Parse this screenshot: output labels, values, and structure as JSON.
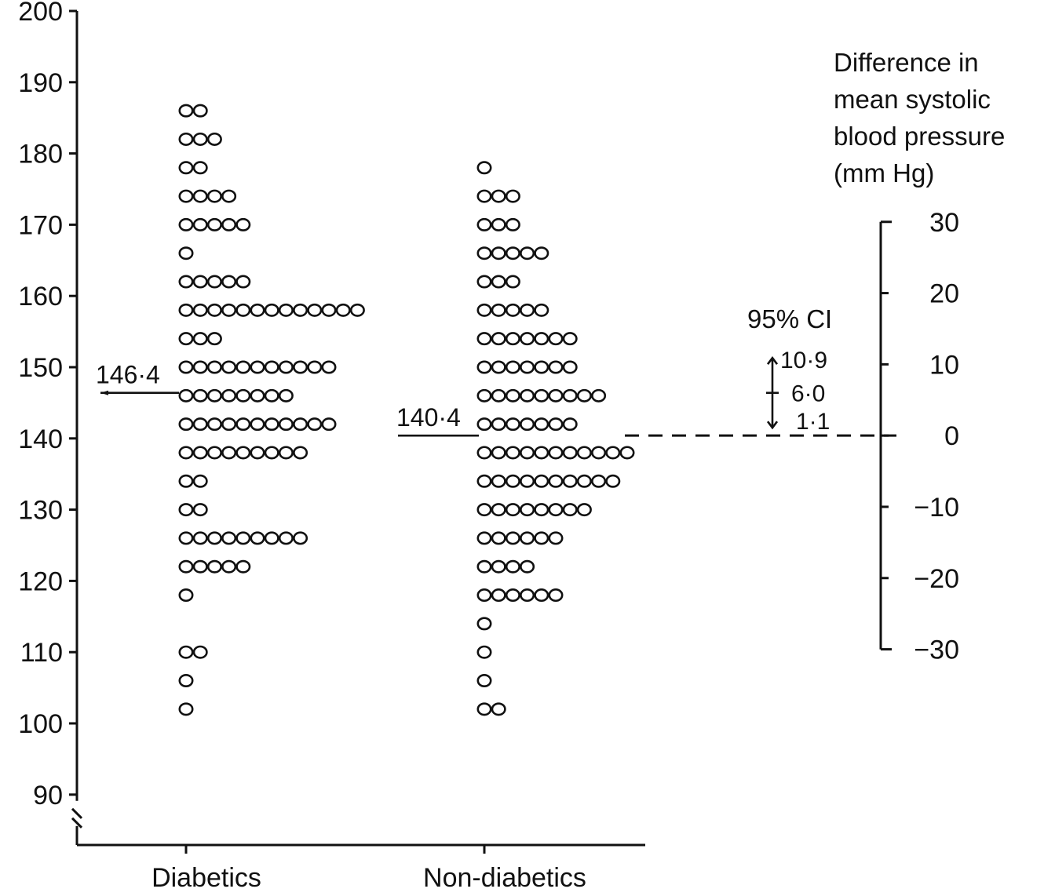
{
  "chart_data": {
    "type": "scatter",
    "subtype": "dot-strip",
    "title": "",
    "xlabel": "",
    "ylabel": "",
    "ylim": [
      90,
      200
    ],
    "y_ticks": [
      90,
      100,
      110,
      120,
      130,
      140,
      150,
      160,
      170,
      180,
      190,
      200
    ],
    "axis_break": true,
    "grid": false,
    "categories": [
      "Diabetics",
      "Non-diabetics"
    ],
    "series": [
      {
        "category": "Diabetics",
        "mean": 146.4,
        "mean_label": "146·4",
        "rows": [
          {
            "y": 186,
            "count": 2
          },
          {
            "y": 182,
            "count": 3
          },
          {
            "y": 178,
            "count": 2
          },
          {
            "y": 174,
            "count": 4
          },
          {
            "y": 170,
            "count": 5
          },
          {
            "y": 166,
            "count": 1
          },
          {
            "y": 162,
            "count": 5
          },
          {
            "y": 158,
            "count": 13
          },
          {
            "y": 154,
            "count": 3
          },
          {
            "y": 150,
            "count": 11
          },
          {
            "y": 146,
            "count": 8
          },
          {
            "y": 142,
            "count": 11
          },
          {
            "y": 138,
            "count": 9
          },
          {
            "y": 134,
            "count": 2
          },
          {
            "y": 130,
            "count": 2
          },
          {
            "y": 126,
            "count": 9
          },
          {
            "y": 122,
            "count": 5
          },
          {
            "y": 118,
            "count": 1
          },
          {
            "y": 110,
            "count": 2
          },
          {
            "y": 106,
            "count": 1
          },
          {
            "y": 102,
            "count": 1
          }
        ]
      },
      {
        "category": "Non-diabetics",
        "mean": 140.4,
        "mean_label": "140·4",
        "rows": [
          {
            "y": 178,
            "count": 1
          },
          {
            "y": 174,
            "count": 3
          },
          {
            "y": 170,
            "count": 3
          },
          {
            "y": 166,
            "count": 5
          },
          {
            "y": 162,
            "count": 3
          },
          {
            "y": 158,
            "count": 5
          },
          {
            "y": 154,
            "count": 7
          },
          {
            "y": 150,
            "count": 7
          },
          {
            "y": 146,
            "count": 9
          },
          {
            "y": 142,
            "count": 7
          },
          {
            "y": 138,
            "count": 11
          },
          {
            "y": 134,
            "count": 10
          },
          {
            "y": 130,
            "count": 8
          },
          {
            "y": 126,
            "count": 6
          },
          {
            "y": 122,
            "count": 4
          },
          {
            "y": 118,
            "count": 6
          },
          {
            "y": 114,
            "count": 1
          },
          {
            "y": 110,
            "count": 1
          },
          {
            "y": 106,
            "count": 1
          },
          {
            "y": 102,
            "count": 2
          }
        ]
      }
    ],
    "difference_axis": {
      "title_lines": [
        "Difference in",
        "mean systolic",
        "blood pressure",
        "(mm Hg)"
      ],
      "range": [
        -30,
        30
      ],
      "ticks": [
        -30,
        -20,
        -10,
        0,
        10,
        20,
        30
      ],
      "tick_labels": [
        "−30",
        "−20",
        "−10",
        "0",
        "10",
        "20",
        "30"
      ],
      "zero_aligned_to": 140.4,
      "ci_title": "95% CI",
      "ci_estimate": 6.0,
      "ci_lower": 1.1,
      "ci_upper": 10.9,
      "ci_labels": [
        "10·9",
        "6·0",
        "1·1"
      ]
    }
  }
}
